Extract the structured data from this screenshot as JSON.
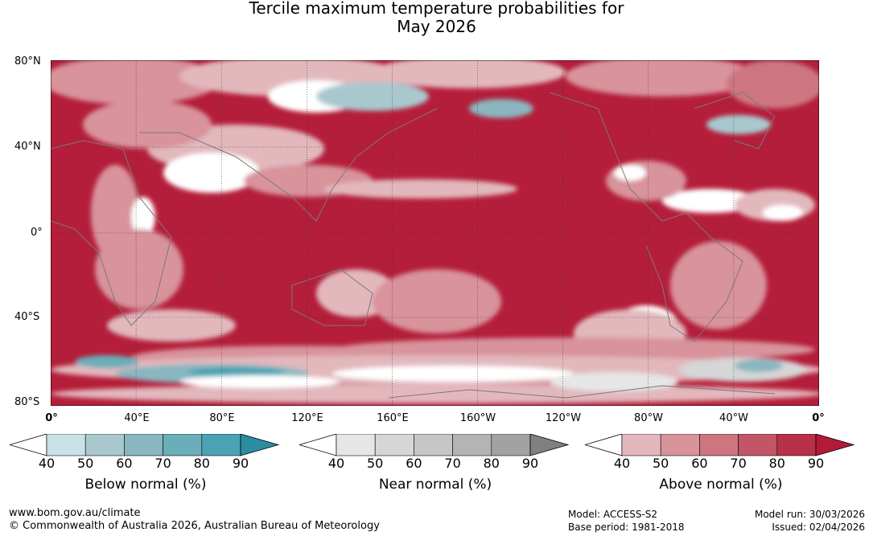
{
  "title": {
    "line1": "Tercile maximum temperature probabilities for",
    "line2": "May 2026"
  },
  "map": {
    "lat_labels": [
      "80°N",
      "40°N",
      "0°",
      "40°S",
      "80°S"
    ],
    "lon_labels": [
      "0°",
      "40°E",
      "80°E",
      "120°E",
      "160°E",
      "160°W",
      "120°W",
      "80°W",
      "40°W",
      "0°"
    ],
    "colors": {
      "ocean_dominant": "#b41e3a",
      "land_lines": "#808080"
    }
  },
  "colorbars": [
    {
      "label": "Below normal (%)",
      "ticks": [
        "40",
        "50",
        "60",
        "70",
        "80",
        "90"
      ],
      "colors": [
        "#ffffff",
        "#c9e1e7",
        "#a9c8ce",
        "#8ab6c0",
        "#6aaeba",
        "#4aa2b2",
        "#2a8da0"
      ]
    },
    {
      "label": "Near normal (%)",
      "ticks": [
        "40",
        "50",
        "60",
        "70",
        "80",
        "90"
      ],
      "colors": [
        "#ffffff",
        "#e6e6e6",
        "#d6d6d6",
        "#c6c6c6",
        "#b4b4b4",
        "#a2a2a2",
        "#808080"
      ]
    },
    {
      "label": "Above normal (%)",
      "ticks": [
        "40",
        "50",
        "60",
        "70",
        "80",
        "90"
      ],
      "colors": [
        "#ffffff",
        "#e2b8bd",
        "#d8939b",
        "#cd7680",
        "#c25566",
        "#b93148",
        "#b31a3a"
      ]
    }
  ],
  "footer": {
    "url": "www.bom.gov.au/climate",
    "copyright": "© Commonwealth of Australia 2026, Australian Bureau of Meteorology",
    "model": "Model: ACCESS-S2",
    "base_period": "Base period: 1981-2018",
    "model_run": "Model run: 30/03/2026",
    "issued": "Issued: 02/04/2026"
  }
}
